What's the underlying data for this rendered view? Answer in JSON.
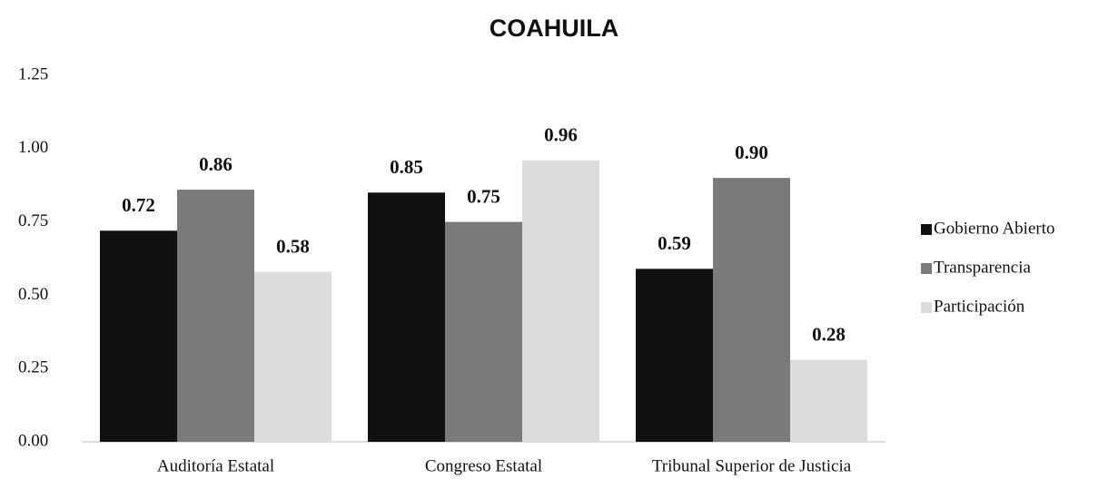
{
  "chart_data": {
    "type": "bar",
    "title": "COAHUILA",
    "categories": [
      "Auditoría Estatal",
      "Congreso Estatal",
      "Tribunal Superior de Justicia"
    ],
    "series": [
      {
        "name": "Gobierno Abierto",
        "color": "#111111",
        "values": [
          0.72,
          0.85,
          0.59
        ],
        "value_labels": [
          "0.72",
          "0.85",
          "0.59"
        ]
      },
      {
        "name": "Transparencia",
        "color": "#7a7a7a",
        "values": [
          0.86,
          0.75,
          0.9
        ],
        "value_labels": [
          "0.86",
          "0.75",
          "0.90"
        ]
      },
      {
        "name": "Participación",
        "color": "#dcdcdc",
        "values": [
          0.58,
          0.96,
          0.28
        ],
        "value_labels": [
          "0.58",
          "0.96",
          "0.28"
        ]
      }
    ],
    "ylim": [
      0,
      1.25
    ],
    "yticks": [
      {
        "value": 0,
        "label": "0.00"
      },
      {
        "value": 0.25,
        "label": "0.25"
      },
      {
        "value": 0.5,
        "label": "0.50"
      },
      {
        "value": 0.75,
        "label": "0.75"
      },
      {
        "value": 1,
        "label": "1.00"
      },
      {
        "value": 1.25,
        "label": "1.25"
      }
    ],
    "grid": false,
    "legend": "right"
  }
}
